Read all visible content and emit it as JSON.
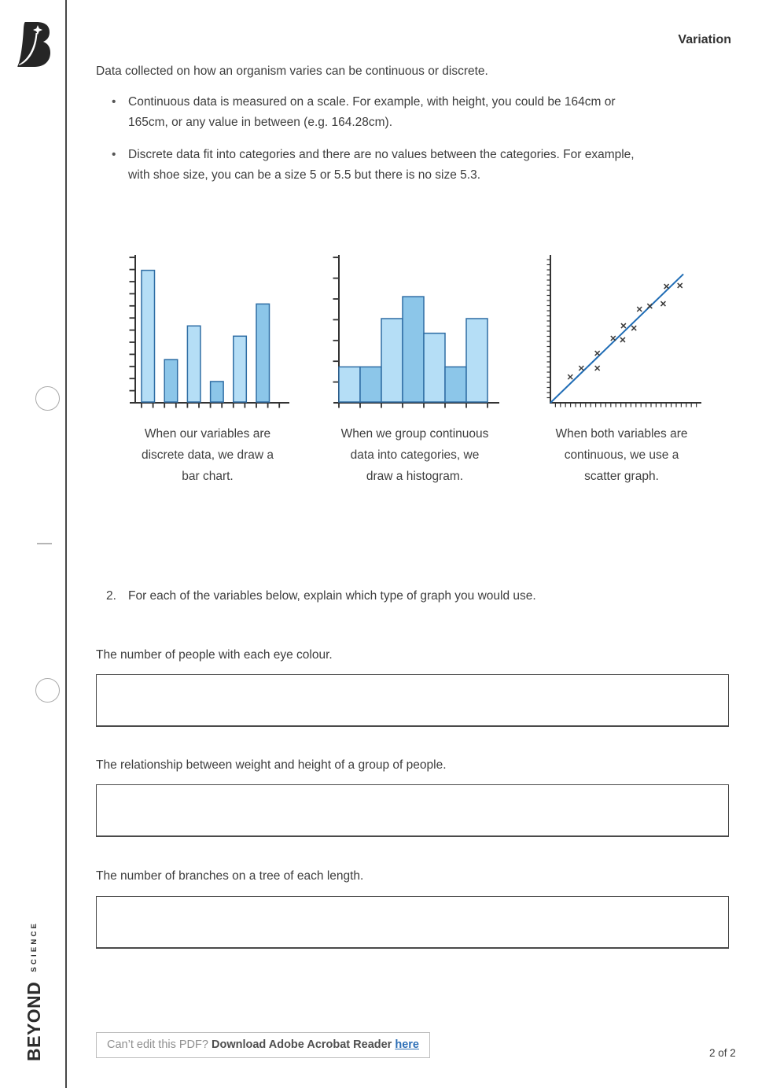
{
  "page": {
    "header_title": "Variation",
    "intro": "Data collected on how an organism varies can be continuous or discrete.",
    "bullet_char": "•",
    "bullets": [
      {
        "lines": [
          "Continuous data is measured on a scale. For example, with height, you could be 164cm or",
          "165cm, or any value in between (e.g. 164.28cm)."
        ]
      },
      {
        "lines": [
          "Discrete data fit into categories and there are no values between the categories. For example,",
          "with shoe size, you can be a size 5 or 5.5 but there is no size 5.3."
        ]
      }
    ],
    "question": {
      "number": "2.",
      "text": "For each of the variables below, explain which type of graph you would use."
    },
    "answers": [
      {
        "prompt": "The number of people with each eye colour.",
        "value": ""
      },
      {
        "prompt": "The relationship between weight and height of a group of people.",
        "value": ""
      },
      {
        "prompt": "The number of branches on a tree of each length.",
        "value": ""
      }
    ],
    "footer": {
      "notice_prefix": "Can’t edit this PDF? ",
      "notice_bold": "Download Adobe Acrobat Reader ",
      "notice_link": "here",
      "page_indicator": "2 of 2"
    },
    "brand": {
      "name": "BEYOND",
      "sub": "SCIENCE"
    }
  },
  "colors": {
    "bar_fill_light": "#b5def6",
    "bar_fill_dark": "#8cc6e9",
    "bar_stroke": "#2e6da4",
    "axis": "#333333",
    "trend_line": "#1f6cb5",
    "marker": "#3a3a3a",
    "link_blue": "#2d6fb7"
  },
  "chart_data": [
    {
      "type": "bar",
      "caption_lines": [
        "When our variables are",
        "discrete data, we draw a",
        "bar chart."
      ],
      "categories": [
        "1",
        "2",
        "3",
        "4",
        "5",
        "6"
      ],
      "values": [
        0.9,
        0.29,
        0.52,
        0.14,
        0.45,
        0.67
      ],
      "ylim": [
        0,
        1
      ],
      "y_tick_count": 12,
      "x_tick_count": 13,
      "bar_color_pattern": [
        "light",
        "dark",
        "light",
        "dark",
        "light",
        "dark"
      ],
      "axis_tick_labels": "none"
    },
    {
      "type": "histogram",
      "caption_lines": [
        "When we group continuous",
        "data into categories, we",
        "draw a histogram."
      ],
      "values": [
        0.24,
        0.24,
        0.57,
        0.72,
        0.47,
        0.24,
        0.57
      ],
      "ylim": [
        0,
        1
      ],
      "y_tick_count": 7,
      "x_tick_count": 8,
      "bar_color_pattern": [
        "light",
        "dark",
        "light",
        "dark",
        "light",
        "dark",
        "light"
      ],
      "axis_tick_labels": "none"
    },
    {
      "type": "scatter",
      "caption_lines": [
        "When both variables are",
        "continuous, we use a",
        "scatter graph."
      ],
      "points": [
        [
          0.133,
          0.175
        ],
        [
          0.207,
          0.234
        ],
        [
          0.314,
          0.234
        ],
        [
          0.314,
          0.335
        ],
        [
          0.42,
          0.436
        ],
        [
          0.484,
          0.426
        ],
        [
          0.489,
          0.521
        ],
        [
          0.559,
          0.505
        ],
        [
          0.596,
          0.633
        ],
        [
          0.665,
          0.654
        ],
        [
          0.755,
          0.67
        ],
        [
          0.777,
          0.787
        ],
        [
          0.867,
          0.793
        ]
      ],
      "trend": {
        "from": [
          0,
          0
        ],
        "to": [
          0.89,
          0.87
        ]
      },
      "xlim": [
        0,
        1
      ],
      "ylim": [
        0,
        1
      ],
      "y_tick_count": 28,
      "x_tick_count": 29,
      "marker_glyph": "x",
      "axis_tick_labels": "none"
    }
  ]
}
